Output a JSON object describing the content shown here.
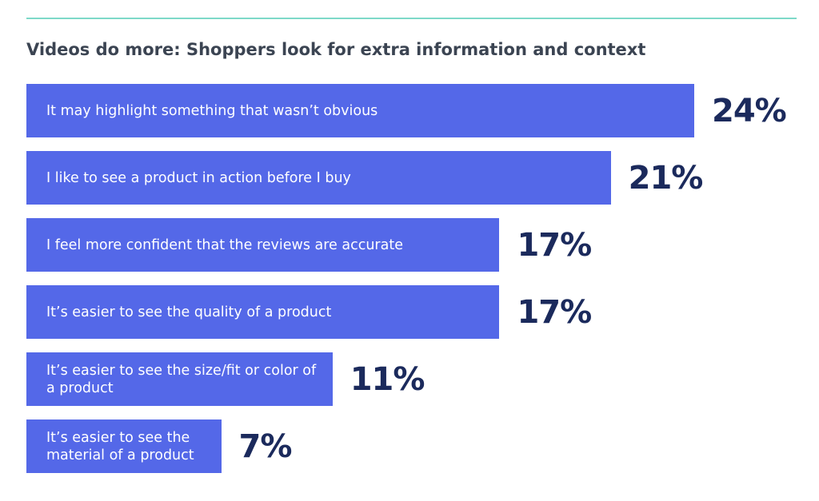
{
  "chart_data": {
    "type": "bar",
    "orientation": "horizontal",
    "title": "Videos do more: Shoppers look for extra information and context",
    "categories": [
      "It may highlight something that wasn’t obvious",
      "I like to see a product in action before I buy",
      "I feel more confident that the reviews are accurate",
      "It’s easier to see the quality of a product",
      "It’s easier to see the size/fit or color of a product",
      "It’s easier to see the material of a product"
    ],
    "values": [
      24,
      21,
      17,
      17,
      11,
      7
    ],
    "value_labels": [
      "24%",
      "21%",
      "17%",
      "17%",
      "11%",
      "7%"
    ],
    "color": "#5468e8"
  }
}
